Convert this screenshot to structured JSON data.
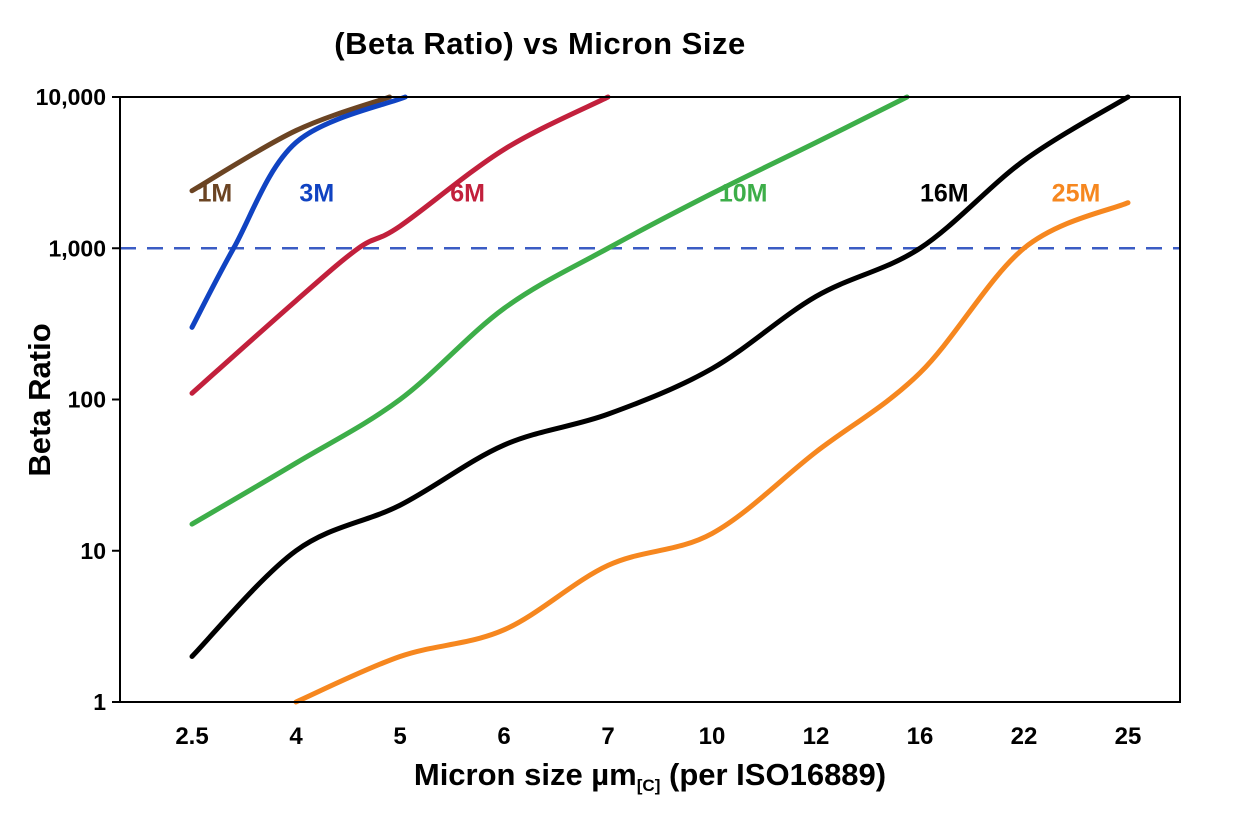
{
  "title": "(Beta Ratio) vs Micron Size",
  "ylabel": "Beta Ratio",
  "xlabel": {
    "prefix": "Micron size µm",
    "subscript": "[C]",
    "suffix": " (per ISO16889)"
  },
  "chart_data": {
    "type": "line",
    "x_axis": {
      "label": "Micron size µm[C] (per ISO16889)",
      "categories": [
        2.5,
        4,
        5,
        6,
        7,
        10,
        12,
        16,
        22,
        25
      ],
      "tick_labels": [
        "2.5",
        "4",
        "5",
        "6",
        "7",
        "10",
        "12",
        "16",
        "22",
        "25"
      ],
      "scale": "categorical"
    },
    "y_axis": {
      "label": "Beta Ratio",
      "scale": "log",
      "ylim": [
        1,
        10000
      ],
      "ticks": [
        {
          "value": 10000,
          "label": "10,000"
        },
        {
          "value": 1000,
          "label": "1,000"
        },
        {
          "value": 100,
          "label": "100"
        },
        {
          "value": 10,
          "label": "10"
        },
        {
          "value": 1,
          "label": "1"
        }
      ]
    },
    "grid": "off",
    "legend": "inline-curve-labels",
    "reference_line": {
      "y": 1000,
      "style": "dashed",
      "color": "#3B5CC4",
      "width": 2.5
    },
    "plot_border_color": "#000000",
    "series": [
      {
        "name": "1M",
        "color": "#6B4423",
        "label": {
          "text": "1M",
          "x": 2.83,
          "y": 2300
        },
        "points": [
          [
            2.5,
            2400
          ],
          [
            4,
            6000
          ],
          [
            4.9,
            10000
          ]
        ]
      },
      {
        "name": "3M",
        "color": "#1043C2",
        "label": {
          "text": "3M",
          "x": 4.2,
          "y": 2300
        },
        "points": [
          [
            2.5,
            300
          ],
          [
            3.1,
            1000
          ],
          [
            4,
            5000
          ],
          [
            5.05,
            10000
          ]
        ]
      },
      {
        "name": "6M",
        "color": "#C2203C",
        "label": {
          "text": "6M",
          "x": 5.65,
          "y": 2300
        },
        "points": [
          [
            2.5,
            110
          ],
          [
            4,
            450
          ],
          [
            4.6,
            1000
          ],
          [
            5,
            1400
          ],
          [
            6,
            4500
          ],
          [
            7,
            10000
          ]
        ]
      },
      {
        "name": "10M",
        "color": "#3DAE49",
        "label": {
          "text": "10M",
          "x": 10.6,
          "y": 2300
        },
        "points": [
          [
            2.5,
            15
          ],
          [
            4,
            38
          ],
          [
            5,
            100
          ],
          [
            6,
            400
          ],
          [
            7,
            1000
          ],
          [
            10,
            2300
          ],
          [
            12,
            5000
          ],
          [
            15.5,
            10000
          ]
        ]
      },
      {
        "name": "16M",
        "color": "#000000",
        "label": {
          "text": "16M",
          "x": 17.4,
          "y": 2300
        },
        "points": [
          [
            2.5,
            2
          ],
          [
            4,
            10
          ],
          [
            5,
            20
          ],
          [
            6,
            50
          ],
          [
            7,
            80
          ],
          [
            10,
            160
          ],
          [
            12,
            480
          ],
          [
            16,
            1000
          ],
          [
            22,
            3800
          ],
          [
            25,
            10000
          ]
        ]
      },
      {
        "name": "25M",
        "color": "#F6871F",
        "label": {
          "text": "25M",
          "x": 23.5,
          "y": 2300
        },
        "points": [
          [
            4,
            1
          ],
          [
            5,
            2
          ],
          [
            6,
            3
          ],
          [
            7,
            8
          ],
          [
            10,
            13
          ],
          [
            12,
            45
          ],
          [
            16,
            150
          ],
          [
            22,
            1000
          ],
          [
            25,
            2000
          ]
        ]
      }
    ]
  }
}
